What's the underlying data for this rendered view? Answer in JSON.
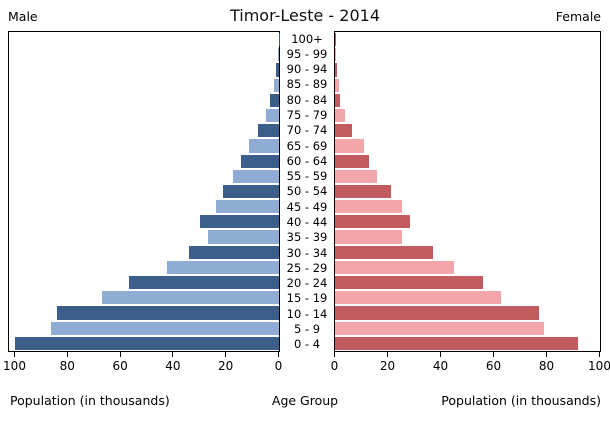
{
  "header": {
    "title": "Timor-Leste - 2014",
    "left_label": "Male",
    "right_label": "Female"
  },
  "footer": {
    "left_caption": "Population (in thousands)",
    "center_caption": "Age Group",
    "right_caption": "Population (in thousands)"
  },
  "colors": {
    "male_dark": "#3b5f8a",
    "male_light": "#8fadd4",
    "female_dark": "#c25b5e",
    "female_light": "#f2a6aa",
    "axis": "#000000"
  },
  "chart_data": {
    "type": "bar",
    "subtype": "population-pyramid",
    "title": "Timor-Leste - 2014",
    "unit": "thousands",
    "xlabel": "Population (in thousands)",
    "center_label": "Age Group",
    "xlim": [
      0,
      103
    ],
    "axis_ticks": [
      0,
      20,
      40,
      60,
      80,
      100
    ],
    "grid": false,
    "categories_top_to_bottom": [
      "100+",
      "95 - 99",
      "90 - 94",
      "85 - 89",
      "80 - 84",
      "75 - 79",
      "70 - 74",
      "65 - 69",
      "60 - 64",
      "55 - 59",
      "50 - 54",
      "45 - 49",
      "40 - 44",
      "35 - 39",
      "30 - 34",
      "25 - 29",
      "20 - 24",
      "15 - 19",
      "10 - 14",
      "5 - 9",
      "0 - 4"
    ],
    "series": [
      {
        "name": "Male",
        "side": "left",
        "values": [
          0.15,
          0.5,
          1.0,
          1.8,
          3.4,
          4.9,
          8.1,
          11.3,
          14.6,
          17.5,
          21.3,
          24,
          30,
          27,
          34,
          42.5,
          57,
          67,
          84,
          86.5,
          100
        ]
      },
      {
        "name": "Female",
        "side": "right",
        "values": [
          0.15,
          0.4,
          0.6,
          1.4,
          1.9,
          3.7,
          6.5,
          10.8,
          12.8,
          16,
          21.3,
          25.3,
          28.5,
          25.3,
          37,
          45,
          56,
          63,
          77.3,
          79.3,
          92
        ]
      }
    ]
  }
}
